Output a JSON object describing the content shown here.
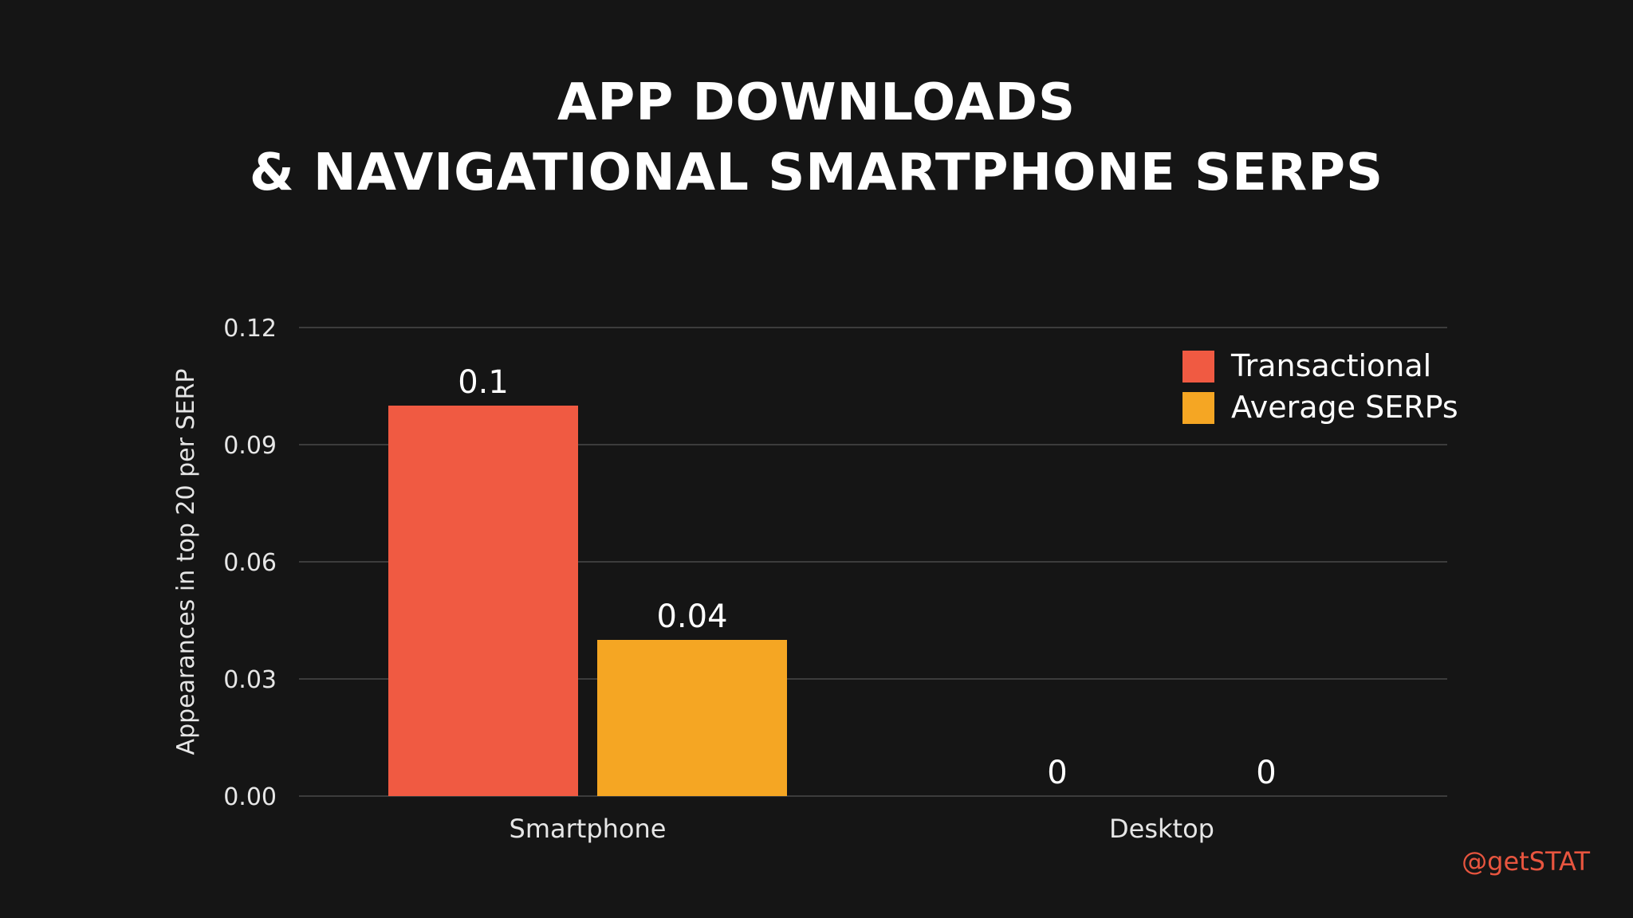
{
  "header": {
    "title_line1": "APP DOWNLOADS",
    "title_line2": "& NAVIGATIONAL SMARTPHONE SERPS"
  },
  "watermark": "@getSTAT",
  "chart_data": {
    "type": "bar",
    "title": "APP DOWNLOADS & NAVIGATIONAL SMARTPHONE SERPS",
    "xlabel": "",
    "ylabel": "Appearances in top 20 per SERP",
    "categories": [
      "Smartphone",
      "Desktop"
    ],
    "series": [
      {
        "name": "Transactional",
        "values": [
          0.1,
          0
        ],
        "labels": [
          "0.1",
          "0"
        ],
        "color": "#f05a42"
      },
      {
        "name": "Average SERPs",
        "values": [
          0.04,
          0
        ],
        "labels": [
          "0.04",
          "0"
        ],
        "color": "#f5a623"
      }
    ],
    "ylim": [
      0,
      0.12
    ],
    "yticks": [
      "0.00",
      "0.03",
      "0.06",
      "0.09",
      "0.12"
    ],
    "grid": true,
    "legend_position": "top-right",
    "colors": {
      "background": "#151515",
      "text": "#ffffff",
      "axis_text": "#e6e6e6",
      "grid": "#4a4a4a",
      "accent": "#e8553f"
    }
  }
}
